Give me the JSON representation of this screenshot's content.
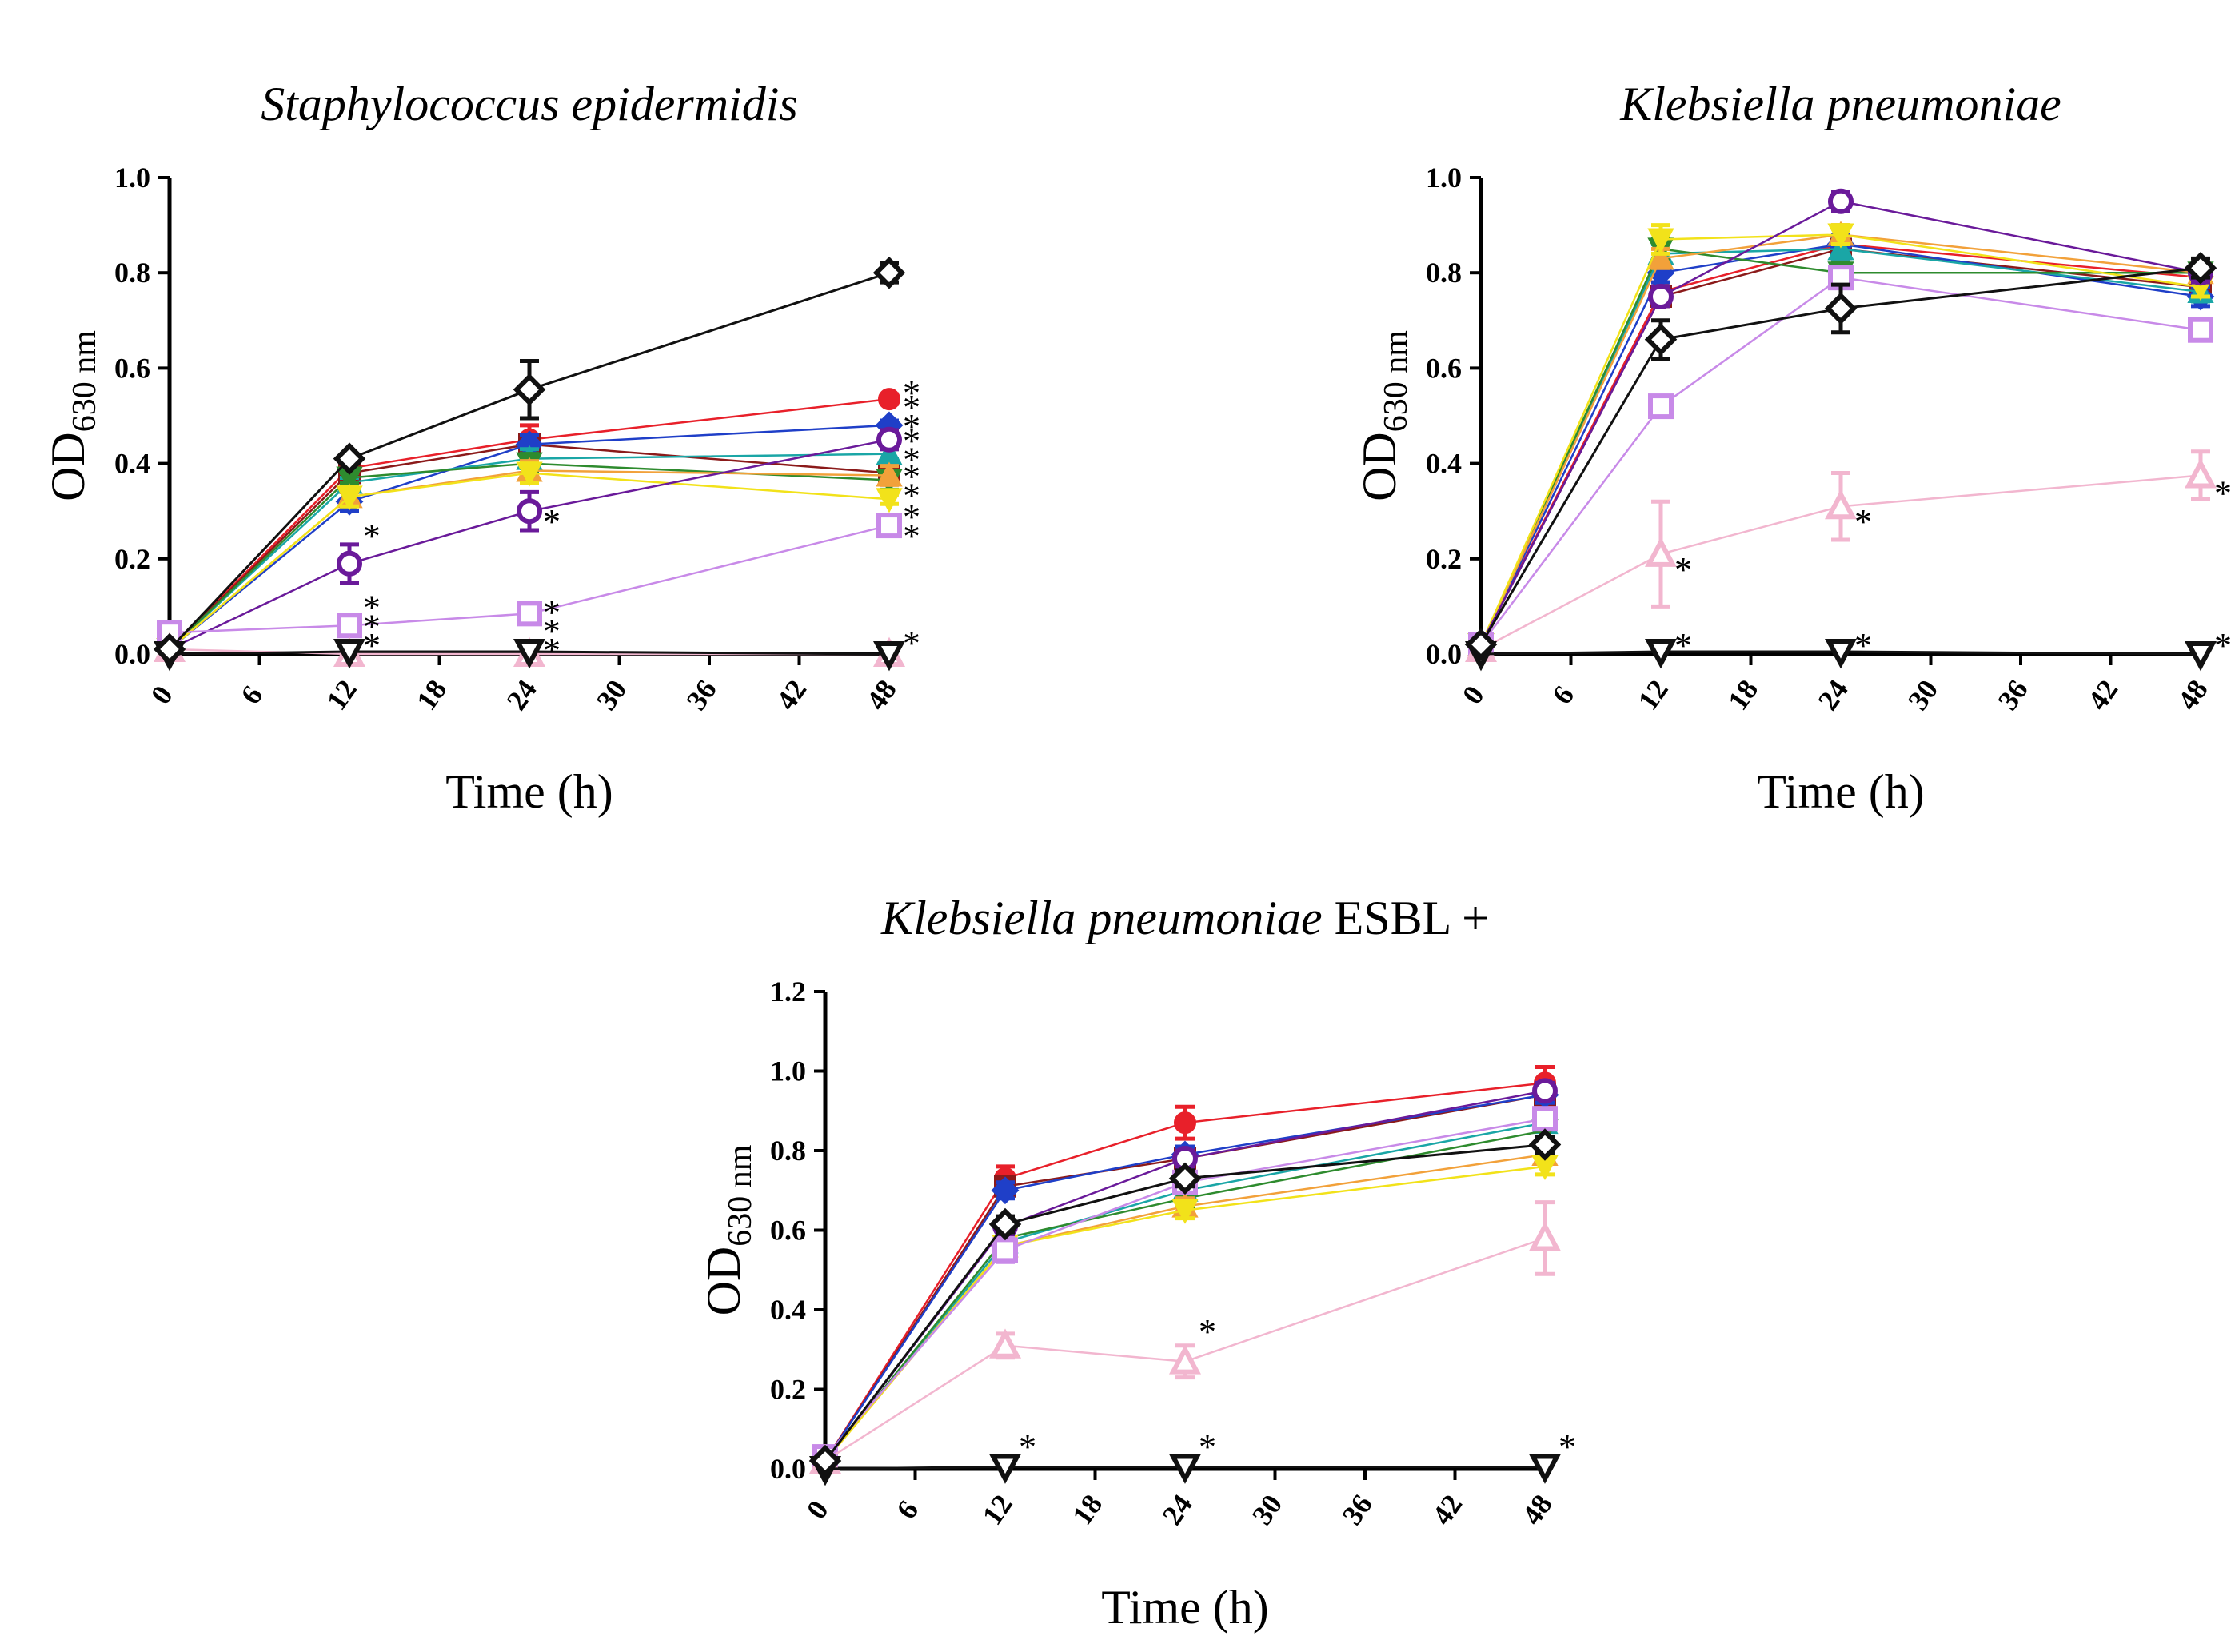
{
  "chart_data": [
    {
      "type": "line",
      "title": "Staphylococcus epidermidis",
      "title_suffix": "",
      "xlabel": "Time (h)",
      "ylabel_main": "OD",
      "ylabel_sub": "630 nm",
      "x": [
        0,
        12,
        24,
        48
      ],
      "xticks": [
        "0",
        "6",
        "12",
        "18",
        "24",
        "30",
        "36",
        "42",
        "48"
      ],
      "xlim": [
        0,
        48
      ],
      "yticks": [
        "0.0",
        "0.2",
        "0.4",
        "0.6",
        "0.8",
        "1.0"
      ],
      "ylim": [
        0,
        1.0
      ],
      "series": [
        {
          "name": "red circle",
          "color": "#e8202a",
          "marker": "circle-filled",
          "values": [
            0.01,
            0.39,
            0.45,
            0.535
          ],
          "errors": [
            0,
            0.01,
            0.03,
            0.01
          ]
        },
        {
          "name": "dark red square",
          "color": "#8b1a1a",
          "marker": "square-filled",
          "values": [
            0.01,
            0.38,
            0.44,
            0.38
          ],
          "errors": [
            0,
            0.01,
            0.02,
            0.02
          ]
        },
        {
          "name": "blue diamond",
          "color": "#1f3fc8",
          "marker": "diamond-filled",
          "values": [
            0.01,
            0.32,
            0.44,
            0.48
          ],
          "errors": [
            0,
            0.02,
            0.02,
            0.01
          ]
        },
        {
          "name": "teal triangle",
          "color": "#1aa6a6",
          "marker": "triangle-filled",
          "values": [
            0.01,
            0.36,
            0.41,
            0.42
          ],
          "errors": [
            0,
            0.01,
            0.02,
            0.01
          ]
        },
        {
          "name": "green triangle-down",
          "color": "#2e8b2e",
          "marker": "triangle-down-filled",
          "values": [
            0.01,
            0.37,
            0.4,
            0.365
          ],
          "errors": [
            0,
            0.01,
            0.02,
            0.02
          ]
        },
        {
          "name": "orange triangle",
          "color": "#f2a13a",
          "marker": "triangle-filled",
          "values": [
            0.01,
            0.33,
            0.385,
            0.375
          ],
          "errors": [
            0,
            0.01,
            0.02,
            0.02
          ]
        },
        {
          "name": "yellow triangle-down",
          "color": "#f2e21a",
          "marker": "triangle-down-filled",
          "values": [
            0.01,
            0.33,
            0.38,
            0.325
          ],
          "errors": [
            0,
            0.02,
            0.02,
            0.01
          ]
        },
        {
          "name": "purple open circle",
          "color": "#6a1a9a",
          "marker": "circle-open",
          "values": [
            0.01,
            0.19,
            0.3,
            0.45
          ],
          "errors": [
            0,
            0.04,
            0.04,
            0.02
          ]
        },
        {
          "name": "lilac open square",
          "color": "#c88ae8",
          "marker": "square-open",
          "values": [
            0.045,
            0.06,
            0.085,
            0.27
          ],
          "errors": [
            0,
            0.01,
            0.01,
            0.01
          ]
        },
        {
          "name": "pink open triangle",
          "color": "#f2b6cf",
          "marker": "triangle-open",
          "values": [
            0.01,
            0.0,
            0.0,
            0.0
          ],
          "errors": [
            0,
            0,
            0,
            0
          ]
        },
        {
          "name": "black open triangle-down",
          "color": "#111111",
          "marker": "triangle-down-open",
          "values": [
            0.0,
            0.005,
            0.005,
            0.0
          ],
          "errors": [
            0,
            0,
            0,
            0
          ]
        },
        {
          "name": "black open diamond",
          "color": "#111111",
          "marker": "diamond-open",
          "values": [
            0.01,
            0.41,
            0.555,
            0.8
          ],
          "errors": [
            0,
            0.01,
            0.06,
            0.02
          ]
        }
      ],
      "annotations": [
        {
          "text": "*",
          "x": 12,
          "y": 0.26
        },
        {
          "text": "*",
          "x": 12,
          "y": 0.11
        },
        {
          "text": "*",
          "x": 12,
          "y": 0.07
        },
        {
          "text": "*",
          "x": 12,
          "y": 0.03
        },
        {
          "text": "*",
          "x": 24,
          "y": 0.29
        },
        {
          "text": "*",
          "x": 24,
          "y": 0.1
        },
        {
          "text": "*",
          "x": 24,
          "y": 0.06
        },
        {
          "text": "*",
          "x": 24,
          "y": 0.02
        },
        {
          "text": "*",
          "x": 48,
          "y": 0.56
        },
        {
          "text": "*",
          "x": 48,
          "y": 0.53
        },
        {
          "text": "*",
          "x": 48,
          "y": 0.49
        },
        {
          "text": "*",
          "x": 48,
          "y": 0.46
        },
        {
          "text": "*",
          "x": 48,
          "y": 0.42
        },
        {
          "text": "*",
          "x": 48,
          "y": 0.385
        },
        {
          "text": "*",
          "x": 48,
          "y": 0.345
        },
        {
          "text": "*",
          "x": 48,
          "y": 0.3
        },
        {
          "text": "*",
          "x": 48,
          "y": 0.26
        },
        {
          "text": "*",
          "x": 48,
          "y": 0.035
        }
      ]
    },
    {
      "type": "line",
      "title": "Klebsiella pneumoniae",
      "title_suffix": "",
      "xlabel": "Time (h)",
      "ylabel_main": "OD",
      "ylabel_sub": "630 nm",
      "x": [
        0,
        12,
        24,
        48
      ],
      "xticks": [
        "0",
        "6",
        "12",
        "18",
        "24",
        "30",
        "36",
        "42",
        "48"
      ],
      "xlim": [
        0,
        48
      ],
      "yticks": [
        "0.0",
        "0.2",
        "0.4",
        "0.6",
        "0.8",
        "1.0"
      ],
      "ylim": [
        0,
        1.0
      ],
      "series": [
        {
          "name": "red circle",
          "color": "#e8202a",
          "marker": "circle-filled",
          "values": [
            0.02,
            0.76,
            0.86,
            0.79
          ],
          "errors": [
            0,
            0.02,
            0.02,
            0.02
          ]
        },
        {
          "name": "dark red square",
          "color": "#8b1a1a",
          "marker": "square-filled",
          "values": [
            0.02,
            0.75,
            0.85,
            0.77
          ],
          "errors": [
            0,
            0.02,
            0.02,
            0.02
          ]
        },
        {
          "name": "blue diamond",
          "color": "#1f3fc8",
          "marker": "diamond-filled",
          "values": [
            0.02,
            0.8,
            0.86,
            0.75
          ],
          "errors": [
            0,
            0.02,
            0.02,
            0.02
          ]
        },
        {
          "name": "teal triangle",
          "color": "#1aa6a6",
          "marker": "triangle-filled",
          "values": [
            0.02,
            0.84,
            0.85,
            0.76
          ],
          "errors": [
            0,
            0.02,
            0.02,
            0.02
          ]
        },
        {
          "name": "green triangle-down",
          "color": "#2e8b2e",
          "marker": "triangle-down-filled",
          "values": [
            0.02,
            0.85,
            0.8,
            0.8
          ],
          "errors": [
            0,
            0.02,
            0.02,
            0.02
          ]
        },
        {
          "name": "orange triangle",
          "color": "#f2a13a",
          "marker": "triangle-filled",
          "values": [
            0.02,
            0.83,
            0.88,
            0.8
          ],
          "errors": [
            0,
            0.02,
            0.02,
            0.02
          ]
        },
        {
          "name": "yellow triangle-down",
          "color": "#f2e21a",
          "marker": "triangle-down-filled",
          "values": [
            0.02,
            0.87,
            0.88,
            0.77
          ],
          "errors": [
            0,
            0.03,
            0.02,
            0.02
          ]
        },
        {
          "name": "purple open circle",
          "color": "#6a1a9a",
          "marker": "circle-open",
          "values": [
            0.02,
            0.75,
            0.95,
            0.8
          ],
          "errors": [
            0,
            0.02,
            0.02,
            0.02
          ]
        },
        {
          "name": "lilac open square",
          "color": "#c88ae8",
          "marker": "square-open",
          "values": [
            0.02,
            0.52,
            0.79,
            0.68
          ],
          "errors": [
            0,
            0.02,
            0.02,
            0.02
          ]
        },
        {
          "name": "pink open triangle",
          "color": "#f2b6cf",
          "marker": "triangle-open",
          "values": [
            0.01,
            0.21,
            0.31,
            0.375
          ],
          "errors": [
            0,
            0.11,
            0.07,
            0.05
          ]
        },
        {
          "name": "black open triangle-down",
          "color": "#111111",
          "marker": "triangle-down-open",
          "values": [
            0.0,
            0.005,
            0.005,
            0.0
          ],
          "errors": [
            0,
            0,
            0,
            0
          ]
        },
        {
          "name": "black open diamond",
          "color": "#111111",
          "marker": "diamond-open",
          "values": [
            0.02,
            0.66,
            0.725,
            0.81
          ],
          "errors": [
            0,
            0.04,
            0.05,
            0.02
          ]
        }
      ],
      "annotations": [
        {
          "text": "*",
          "x": 12,
          "y": 0.19
        },
        {
          "text": "*",
          "x": 12,
          "y": 0.03
        },
        {
          "text": "*",
          "x": 24,
          "y": 0.29
        },
        {
          "text": "*",
          "x": 24,
          "y": 0.03
        },
        {
          "text": "*",
          "x": 48,
          "y": 0.35
        },
        {
          "text": "*",
          "x": 48,
          "y": 0.03
        }
      ]
    },
    {
      "type": "line",
      "title": "Klebsiella pneumoniae",
      "title_suffix": " ESBL +",
      "xlabel": "Time (h)",
      "ylabel_main": "OD",
      "ylabel_sub": "630 nm",
      "x": [
        0,
        12,
        24,
        48
      ],
      "xticks": [
        "0",
        "6",
        "12",
        "18",
        "24",
        "30",
        "36",
        "42",
        "48"
      ],
      "xlim": [
        0,
        48
      ],
      "yticks": [
        "0.0",
        "0.2",
        "0.4",
        "0.6",
        "0.8",
        "1.0",
        "1.2"
      ],
      "ylim": [
        0,
        1.2
      ],
      "series": [
        {
          "name": "red circle",
          "color": "#e8202a",
          "marker": "circle-filled",
          "values": [
            0.02,
            0.73,
            0.87,
            0.97
          ],
          "errors": [
            0,
            0.03,
            0.04,
            0.04
          ]
        },
        {
          "name": "dark red square",
          "color": "#8b1a1a",
          "marker": "square-filled",
          "values": [
            0.02,
            0.71,
            0.78,
            0.94
          ],
          "errors": [
            0,
            0.02,
            0.02,
            0.02
          ]
        },
        {
          "name": "blue diamond",
          "color": "#1f3fc8",
          "marker": "diamond-filled",
          "values": [
            0.02,
            0.7,
            0.79,
            0.94
          ],
          "errors": [
            0,
            0.02,
            0.02,
            0.02
          ]
        },
        {
          "name": "teal triangle",
          "color": "#1aa6a6",
          "marker": "triangle-filled",
          "values": [
            0.02,
            0.57,
            0.7,
            0.87
          ],
          "errors": [
            0,
            0.02,
            0.02,
            0.02
          ]
        },
        {
          "name": "green triangle-down",
          "color": "#2e8b2e",
          "marker": "triangle-down-filled",
          "values": [
            0.02,
            0.58,
            0.68,
            0.85
          ],
          "errors": [
            0,
            0.02,
            0.02,
            0.02
          ]
        },
        {
          "name": "orange triangle",
          "color": "#f2a13a",
          "marker": "triangle-filled",
          "values": [
            0.02,
            0.56,
            0.66,
            0.79
          ],
          "errors": [
            0,
            0.02,
            0.02,
            0.02
          ]
        },
        {
          "name": "yellow triangle-down",
          "color": "#f2e21a",
          "marker": "triangle-down-filled",
          "values": [
            0.02,
            0.56,
            0.65,
            0.76
          ],
          "errors": [
            0,
            0.02,
            0.02,
            0.02
          ]
        },
        {
          "name": "purple open circle",
          "color": "#6a1a9a",
          "marker": "circle-open",
          "values": [
            0.02,
            0.61,
            0.78,
            0.95
          ],
          "errors": [
            0,
            0.02,
            0.02,
            0.02
          ]
        },
        {
          "name": "lilac open square",
          "color": "#c88ae8",
          "marker": "square-open",
          "values": [
            0.03,
            0.55,
            0.72,
            0.88
          ],
          "errors": [
            0,
            0.03,
            0.02,
            0.02
          ]
        },
        {
          "name": "pink open triangle",
          "color": "#f2b6cf",
          "marker": "triangle-open",
          "values": [
            0.02,
            0.31,
            0.27,
            0.58
          ],
          "errors": [
            0,
            0.03,
            0.04,
            0.09
          ]
        },
        {
          "name": "black open triangle-down",
          "color": "#111111",
          "marker": "triangle-down-open",
          "values": [
            0.0,
            0.005,
            0.005,
            0.005
          ],
          "errors": [
            0,
            0,
            0,
            0
          ]
        },
        {
          "name": "black open diamond",
          "color": "#111111",
          "marker": "diamond-open",
          "values": [
            0.02,
            0.615,
            0.73,
            0.815
          ],
          "errors": [
            0,
            0.02,
            0.02,
            0.02
          ]
        }
      ],
      "annotations": [
        {
          "text": "*",
          "x": 12,
          "y": 0.07
        },
        {
          "text": "*",
          "x": 24,
          "y": 0.36
        },
        {
          "text": "*",
          "x": 24,
          "y": 0.07
        },
        {
          "text": "*",
          "x": 48,
          "y": 0.07
        }
      ]
    }
  ]
}
